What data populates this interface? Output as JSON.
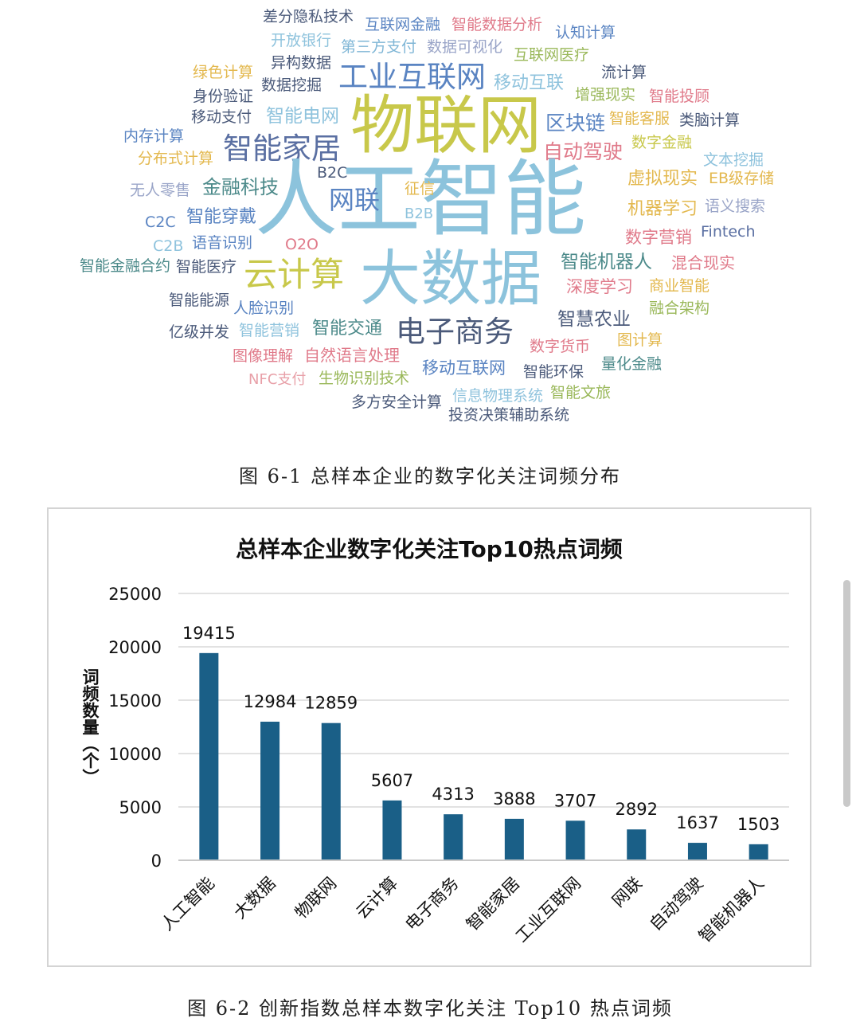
{
  "figure1": {
    "caption": "图 6-1  总样本企业的数字化关注词频分布",
    "words": [
      {
        "text": "差分隐私技术",
        "color": "#4b5a7a"
      },
      {
        "text": "互联网金融",
        "color": "#5a84c2"
      },
      {
        "text": "智能数据分析",
        "color": "#e07a8a"
      },
      {
        "text": "认知计算",
        "color": "#5a84c2"
      },
      {
        "text": "开放银行",
        "color": "#8fc3dd"
      },
      {
        "text": "第三方支付",
        "color": "#7fb6d6"
      },
      {
        "text": "数据可视化",
        "color": "#9aa5c8"
      },
      {
        "text": "互联网医疗",
        "color": "#9ab85a"
      },
      {
        "text": "异构数据",
        "color": "#4b5a7a"
      },
      {
        "text": "绿色计算",
        "color": "#e3b84e"
      },
      {
        "text": "工业互联网",
        "color": "#5a84c2"
      },
      {
        "text": "移动互联",
        "color": "#8fc3dd"
      },
      {
        "text": "流计算",
        "color": "#4b5a7a"
      },
      {
        "text": "数据挖掘",
        "color": "#4b5a7a"
      },
      {
        "text": "身份验证",
        "color": "#4b5a7a"
      },
      {
        "text": "增强现实",
        "color": "#9ab85a"
      },
      {
        "text": "智能投顾",
        "color": "#e07a8a"
      },
      {
        "text": "物联网",
        "color": "#c8c84a"
      },
      {
        "text": "移动支付",
        "color": "#4b5a7a"
      },
      {
        "text": "智能电网",
        "color": "#8fc3dd"
      },
      {
        "text": "区块链",
        "color": "#5a84c2"
      },
      {
        "text": "智能客服",
        "color": "#e3b84e"
      },
      {
        "text": "类脑计算",
        "color": "#4b5a7a"
      },
      {
        "text": "内存计算",
        "color": "#5a84c2"
      },
      {
        "text": "智能家居",
        "color": "#5a6fa2"
      },
      {
        "text": "自动驾驶",
        "color": "#e07a8a"
      },
      {
        "text": "数字金融",
        "color": "#c8c84a"
      },
      {
        "text": "分布式计算",
        "color": "#e3b84e"
      },
      {
        "text": "文本挖掘",
        "color": "#8fc3dd"
      },
      {
        "text": "B2C",
        "color": "#4b5a7a"
      },
      {
        "text": "人工智能",
        "color": "#8cc3dc"
      },
      {
        "text": "EB级存储",
        "color": "#e3b84e"
      },
      {
        "text": "虚拟现实",
        "color": "#e3b84e"
      },
      {
        "text": "无人零售",
        "color": "#9aa5c8"
      },
      {
        "text": "金融科技",
        "color": "#4c8a8a"
      },
      {
        "text": "网联",
        "color": "#5a84c2"
      },
      {
        "text": "征信",
        "color": "#e3b84e"
      },
      {
        "text": "机器学习",
        "color": "#e3b84e"
      },
      {
        "text": "语义搜索",
        "color": "#9aa5c8"
      },
      {
        "text": "B2B",
        "color": "#8fc3dd"
      },
      {
        "text": "C2C",
        "color": "#5a84c2"
      },
      {
        "text": "智能穿戴",
        "color": "#5a84c2"
      },
      {
        "text": "Fintech",
        "color": "#5a6fa2"
      },
      {
        "text": "数字营销",
        "color": "#e07a8a"
      },
      {
        "text": "C2B",
        "color": "#8fc3dd"
      },
      {
        "text": "语音识别",
        "color": "#5a84c2"
      },
      {
        "text": "O2O",
        "color": "#e07a8a"
      },
      {
        "text": "大数据",
        "color": "#8cc3dc"
      },
      {
        "text": "云计算",
        "color": "#c8c84a"
      },
      {
        "text": "智能机器人",
        "color": "#4c8a8a"
      },
      {
        "text": "混合现实",
        "color": "#e07a8a"
      },
      {
        "text": "智能金融合约",
        "color": "#4c8a8a"
      },
      {
        "text": "智能医疗",
        "color": "#4b5a7a"
      },
      {
        "text": "深度学习",
        "color": "#e07a8a"
      },
      {
        "text": "商业智能",
        "color": "#e3b84e"
      },
      {
        "text": "智能能源",
        "color": "#4b5a7a"
      },
      {
        "text": "人脸识别",
        "color": "#5a84c2"
      },
      {
        "text": "融合架构",
        "color": "#9ab85a"
      },
      {
        "text": "亿级并发",
        "color": "#4b5a7a"
      },
      {
        "text": "智能营销",
        "color": "#8fc3dd"
      },
      {
        "text": "智能交通",
        "color": "#4c8a8a"
      },
      {
        "text": "电子商务",
        "color": "#4b5a7a"
      },
      {
        "text": "智慧农业",
        "color": "#4b5a7a"
      },
      {
        "text": "图像理解",
        "color": "#e07a8a"
      },
      {
        "text": "自然语言处理",
        "color": "#e07a8a"
      },
      {
        "text": "数字货币",
        "color": "#e07a8a"
      },
      {
        "text": "图计算",
        "color": "#e3b84e"
      },
      {
        "text": "NFC支付",
        "color": "#e8a0a8"
      },
      {
        "text": "生物识别技术",
        "color": "#9ab85a"
      },
      {
        "text": "移动互联网",
        "color": "#5a84c2"
      },
      {
        "text": "智能环保",
        "color": "#4b5a7a"
      },
      {
        "text": "量化金融",
        "color": "#4c8a8a"
      },
      {
        "text": "多方安全计算",
        "color": "#4b5a7a"
      },
      {
        "text": "信息物理系统",
        "color": "#8fc3dd"
      },
      {
        "text": "智能文旅",
        "color": "#9ab85a"
      },
      {
        "text": "投资决策辅助系统",
        "color": "#4b5a7a"
      }
    ]
  },
  "figure2": {
    "caption": "图 6-2  创新指数总样本数字化关注 Top10 热点词频",
    "bar_color": "#1a5f87",
    "grid_color": "#d9d9d9"
  },
  "chart_data": {
    "type": "bar",
    "title": "总样本企业数字化关注Top10热点词频",
    "xlabel": "",
    "ylabel": "词频数量（个）",
    "categories": [
      "人工智能",
      "大数据",
      "物联网",
      "云计算",
      "电子商务",
      "智能家居",
      "工业互联网",
      "网联",
      "自动驾驶",
      "智能机器人"
    ],
    "values": [
      19415,
      12984,
      12859,
      5607,
      4313,
      3888,
      3707,
      2892,
      1637,
      1503
    ],
    "ylim": [
      0,
      25000
    ],
    "yticks": [
      0,
      5000,
      10000,
      15000,
      20000,
      25000
    ],
    "grid": true,
    "legend": "none"
  }
}
